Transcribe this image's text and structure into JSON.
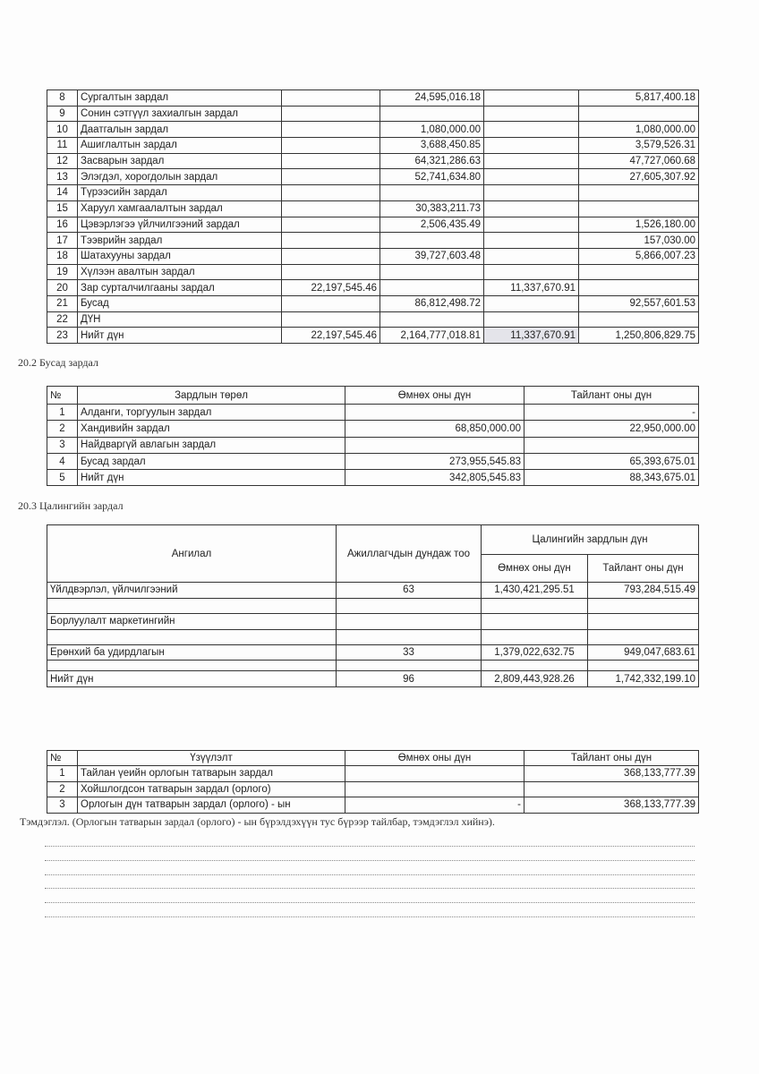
{
  "table_20_1": {
    "rows": [
      [
        "8",
        "Сургалтын зардал",
        "",
        "24,595,016.18",
        "",
        "5,817,400.18"
      ],
      [
        "9",
        "Сонин сэтгүүл захиалгын зардал",
        "",
        "",
        "",
        ""
      ],
      [
        "10",
        "Даатгалын зардал",
        "",
        "1,080,000.00",
        "",
        "1,080,000.00"
      ],
      [
        "11",
        "Ашиглалтын зардал",
        "",
        "3,688,450.85",
        "",
        "3,579,526.31"
      ],
      [
        "12",
        "Засварын зардал",
        "",
        "64,321,286.63",
        "",
        "47,727,060.68"
      ],
      [
        "13",
        "Элэгдэл, хорогдолын зардал",
        "",
        "52,741,634.80",
        "",
        "27,605,307.92"
      ],
      [
        "14",
        "Түрээсийн зардал",
        "",
        "",
        "",
        ""
      ],
      [
        "15",
        "Харуул хамгаалалтын зардал",
        "",
        "30,383,211.73",
        "",
        ""
      ],
      [
        "16",
        "Цэвэрлэгээ үйлчилгээний зардал",
        "",
        "2,506,435.49",
        "",
        "1,526,180.00"
      ],
      [
        "17",
        "Тээврийн зардал",
        "",
        "",
        "",
        "157,030.00"
      ],
      [
        "18",
        "Шатахууны зардал",
        "",
        "39,727,603.48",
        "",
        "5,866,007.23"
      ],
      [
        "19",
        "Хүлээн авалтын зардал",
        "",
        "",
        "",
        ""
      ],
      [
        "20",
        "Зар сурталчилгааны зардал",
        "22,197,545.46",
        "",
        "11,337,670.91",
        ""
      ],
      [
        "21",
        "Бусад",
        "",
        "86,812,498.72",
        "",
        "92,557,601.53"
      ],
      [
        "22",
        "ДҮН",
        "",
        "",
        "",
        ""
      ],
      [
        "23",
        "Нийт дүн",
        "22,197,545.46",
        "2,164,777,018.81",
        "11,337,670.91",
        "1,250,806,829.75"
      ]
    ]
  },
  "section_20_2": {
    "title": "20.2 Бусад зардал",
    "headers": [
      "№",
      "Зардлын төрөл",
      "Өмнөх оны дүн",
      "Тайлант оны дүн"
    ],
    "rows": [
      [
        "1",
        "Алданги, торгуулын зардал",
        "",
        "-"
      ],
      [
        "2",
        "Хандивийн зардал",
        "68,850,000.00",
        "22,950,000.00"
      ],
      [
        "3",
        "Найдваргүй авлагын зардал",
        "",
        ""
      ],
      [
        "4",
        "Бусад зардал",
        "273,955,545.83",
        "65,393,675.01"
      ],
      [
        "5",
        "Нийт дүн",
        "342,805,545.83",
        "88,343,675.01"
      ]
    ]
  },
  "section_20_3": {
    "title": "20.3 Цалингийн зардал",
    "headers": {
      "category": "Ангилал",
      "employees": "Ажиллагчдын дундаж тоо",
      "salary_group": "Цалингийн зардлын дүн",
      "prior": "Өмнөх оны дүн",
      "current": "Тайлант оны дүн"
    },
    "rows": [
      [
        "Үйлдвэрлэл, үйлчилгээний",
        "63",
        "1,430,421,295.51",
        "793,284,515.49"
      ],
      [
        "",
        "",
        "",
        ""
      ],
      [
        "Борлуулалт маркетингийн",
        "",
        "",
        ""
      ],
      [
        "",
        "",
        "",
        ""
      ],
      [
        "Ерөнхий ба удирдлагын",
        "33",
        "1,379,022,632.75",
        "949,047,683.61"
      ],
      [
        "",
        "",
        "",
        ""
      ],
      [
        "Нийт дүн",
        "96",
        "2,809,443,928.26",
        "1,742,332,199.10"
      ]
    ]
  },
  "income_tax": {
    "headers": [
      "№",
      "Үзүүлэлт",
      "Өмнөх оны дүн",
      "Тайлант оны дүн"
    ],
    "rows": [
      [
        "1",
        "Тайлан үеийн орлогын татварын зардал",
        "",
        "368,133,777.39"
      ],
      [
        "2",
        "Хойшлогдсон татварын зардал (орлого)",
        "",
        ""
      ],
      [
        "3",
        "Орлогын дүн татварын зардал (орлого) - ын",
        "-",
        "368,133,777.39"
      ]
    ],
    "note": "Тэмдэглэл. (Орлогын татварын зардал (орлого) - ын бүрэлдэхүүн тус бүрээр тайлбар, тэмдэглэл хийнэ)."
  }
}
